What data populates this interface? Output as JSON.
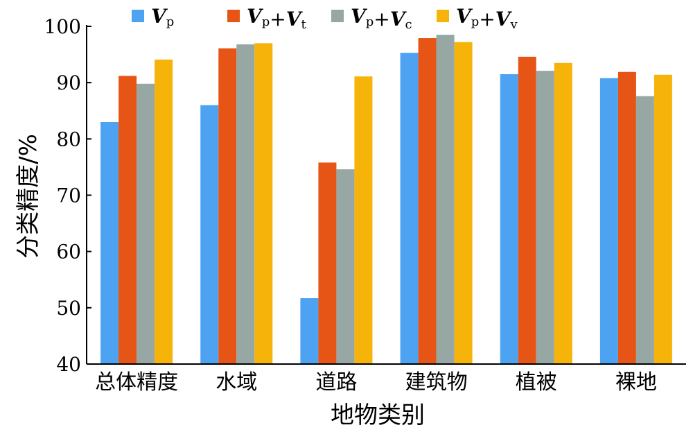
{
  "chart_data": {
    "type": "bar",
    "title": "",
    "xlabel": "地物类别",
    "ylabel": "分类精度/%",
    "ylim": [
      40,
      100
    ],
    "yticks": [
      40,
      50,
      60,
      70,
      80,
      90,
      100
    ],
    "grid": false,
    "legend_position": "top",
    "categories": [
      "总体精度",
      "水域",
      "道路",
      "建筑物",
      "植被",
      "裸地"
    ],
    "series": [
      {
        "name": "Vp",
        "legend_v1": "V",
        "legend_s1": "p",
        "legend_v2": "",
        "legend_s2": "",
        "color": "#4ea2f2",
        "values": [
          83.0,
          86.0,
          51.7,
          95.3,
          91.5,
          90.8
        ]
      },
      {
        "name": "Vp+Vt",
        "legend_v1": "V",
        "legend_s1": "p",
        "legend_v2": "V",
        "legend_s2": "t",
        "color": "#e65516",
        "values": [
          91.2,
          96.1,
          75.8,
          97.9,
          94.6,
          91.9
        ]
      },
      {
        "name": "Vp+Vc",
        "legend_v1": "V",
        "legend_s1": "p",
        "legend_v2": "V",
        "legend_s2": "c",
        "color": "#97a7a3",
        "values": [
          89.8,
          96.8,
          74.6,
          98.5,
          92.1,
          87.6
        ]
      },
      {
        "name": "Vp+Vv",
        "legend_v1": "V",
        "legend_s1": "p",
        "legend_v2": "V",
        "legend_s2": "v",
        "color": "#f6b40a",
        "values": [
          94.1,
          97.0,
          91.1,
          97.2,
          93.5,
          91.4
        ]
      }
    ]
  }
}
